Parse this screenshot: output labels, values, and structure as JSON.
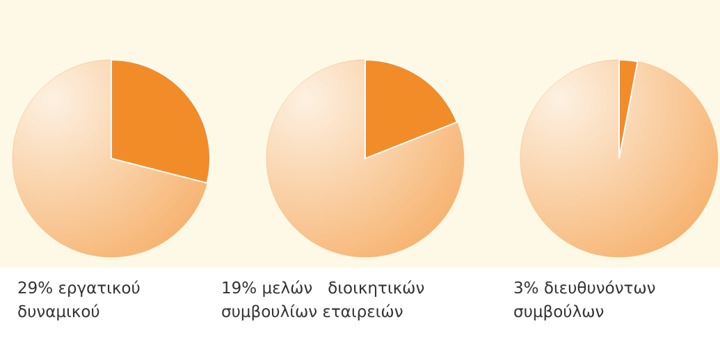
{
  "chart_data": [
    {
      "type": "pie",
      "values": [
        29
      ],
      "value_labels": [
        "29%"
      ],
      "caption_lines": [
        "εργατικού",
        "δυναμικού"
      ],
      "color": "#f28c28",
      "rest_color": "#f6b679"
    },
    {
      "type": "pie",
      "values": [
        19
      ],
      "value_labels": [
        "19%"
      ],
      "caption_lines": [
        "μελών   διοικητικών",
        "συμβουλίων εταιρειών"
      ],
      "color": "#f28c28",
      "rest_color": "#f6b679"
    },
    {
      "type": "pie",
      "values": [
        3
      ],
      "value_labels": [
        "3%"
      ],
      "caption_lines": [
        "διευθυνόντων",
        "συμβούλων"
      ],
      "color": "#f28c28",
      "rest_color": "#f6b679"
    }
  ]
}
